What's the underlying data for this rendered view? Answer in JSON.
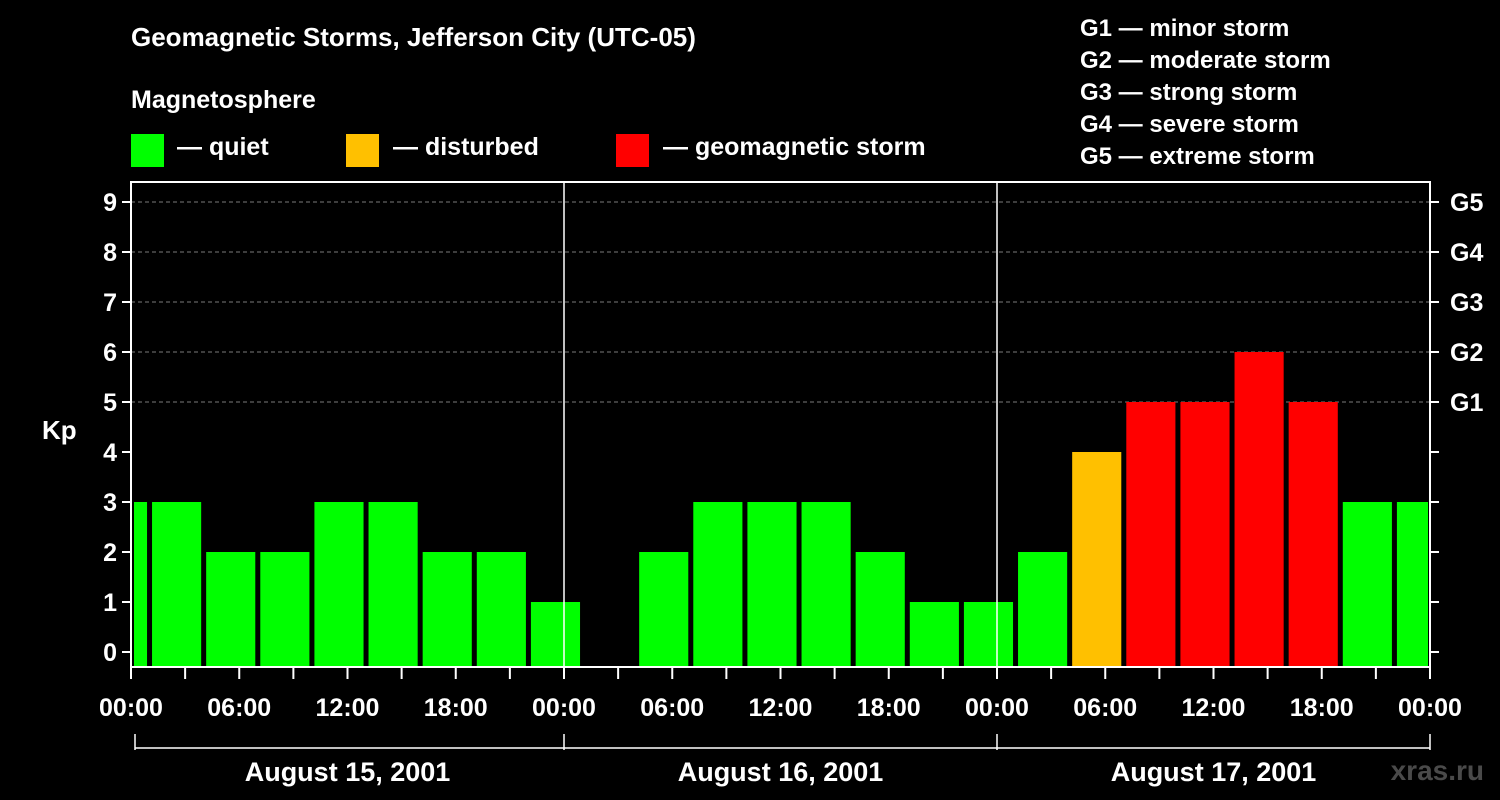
{
  "header": {
    "title": "Geomagnetic Storms, Jefferson City (UTC-05)",
    "subtitle": "Magnetosphere"
  },
  "legend": [
    {
      "label": "— quiet",
      "color": "#00ff00"
    },
    {
      "label": "— disturbed",
      "color": "#ffc000"
    },
    {
      "label": "— geomagnetic storm",
      "color": "#ff0000"
    }
  ],
  "storm_levels": [
    "G1 — minor storm",
    "G2 — moderate storm",
    "G3 — strong storm",
    "G4 — severe storm",
    "G5 — extreme storm"
  ],
  "watermark": "xras.ru",
  "chart_data": {
    "type": "bar",
    "title": "Geomagnetic Storms, Jefferson City (UTC-05)",
    "ylabel": "Kp",
    "ylim": [
      0,
      9
    ],
    "y_ticks": [
      "0",
      "1",
      "2",
      "3",
      "4",
      "5",
      "6",
      "7",
      "8",
      "9"
    ],
    "right_axis": [
      {
        "kp": 5,
        "label": "G1"
      },
      {
        "kp": 6,
        "label": "G2"
      },
      {
        "kp": 7,
        "label": "G3"
      },
      {
        "kp": 8,
        "label": "G4"
      },
      {
        "kp": 9,
        "label": "G5"
      }
    ],
    "x_unit": "hours since August 15, 2001 00:00",
    "xlim": [
      0,
      72
    ],
    "x_ticks": [
      {
        "hour": 0,
        "label": "00:00"
      },
      {
        "hour": 6,
        "label": "06:00"
      },
      {
        "hour": 12,
        "label": "12:00"
      },
      {
        "hour": 18,
        "label": "18:00"
      },
      {
        "hour": 24,
        "label": "00:00"
      },
      {
        "hour": 30,
        "label": "06:00"
      },
      {
        "hour": 36,
        "label": "12:00"
      },
      {
        "hour": 42,
        "label": "18:00"
      },
      {
        "hour": 48,
        "label": "00:00"
      },
      {
        "hour": 54,
        "label": "06:00"
      },
      {
        "hour": 60,
        "label": "12:00"
      },
      {
        "hour": 66,
        "label": "18:00"
      },
      {
        "hour": 72,
        "label": "00:00"
      }
    ],
    "days": [
      {
        "label": "August 15, 2001",
        "start": 0,
        "end": 24
      },
      {
        "label": "August 16, 2001",
        "start": 24,
        "end": 48
      },
      {
        "label": "August 17, 2001",
        "start": 48,
        "end": 72
      }
    ],
    "bars": [
      {
        "start": 0,
        "end": 1,
        "kp": 3,
        "status": "quiet"
      },
      {
        "start": 1,
        "end": 4,
        "kp": 3,
        "status": "quiet"
      },
      {
        "start": 4,
        "end": 7,
        "kp": 2,
        "status": "quiet"
      },
      {
        "start": 7,
        "end": 10,
        "kp": 2,
        "status": "quiet"
      },
      {
        "start": 10,
        "end": 13,
        "kp": 3,
        "status": "quiet"
      },
      {
        "start": 13,
        "end": 16,
        "kp": 3,
        "status": "quiet"
      },
      {
        "start": 16,
        "end": 19,
        "kp": 2,
        "status": "quiet"
      },
      {
        "start": 19,
        "end": 22,
        "kp": 2,
        "status": "quiet"
      },
      {
        "start": 22,
        "end": 25,
        "kp": 1,
        "status": "quiet"
      },
      {
        "start": 28,
        "end": 31,
        "kp": 2,
        "status": "quiet"
      },
      {
        "start": 31,
        "end": 34,
        "kp": 3,
        "status": "quiet"
      },
      {
        "start": 34,
        "end": 37,
        "kp": 3,
        "status": "quiet"
      },
      {
        "start": 37,
        "end": 40,
        "kp": 3,
        "status": "quiet"
      },
      {
        "start": 40,
        "end": 43,
        "kp": 2,
        "status": "quiet"
      },
      {
        "start": 43,
        "end": 46,
        "kp": 1,
        "status": "quiet"
      },
      {
        "start": 46,
        "end": 49,
        "kp": 1,
        "status": "quiet"
      },
      {
        "start": 49,
        "end": 52,
        "kp": 2,
        "status": "quiet"
      },
      {
        "start": 52,
        "end": 55,
        "kp": 4,
        "status": "disturbed"
      },
      {
        "start": 55,
        "end": 58,
        "kp": 5,
        "status": "storm"
      },
      {
        "start": 58,
        "end": 61,
        "kp": 5,
        "status": "storm"
      },
      {
        "start": 61,
        "end": 64,
        "kp": 6,
        "status": "storm"
      },
      {
        "start": 64,
        "end": 67,
        "kp": 5,
        "status": "storm"
      },
      {
        "start": 67,
        "end": 70,
        "kp": 3,
        "status": "quiet"
      },
      {
        "start": 70,
        "end": 72,
        "kp": 3,
        "status": "quiet"
      }
    ],
    "status_colors": {
      "quiet": "#00ff00",
      "disturbed": "#ffc000",
      "storm": "#ff0000"
    }
  }
}
